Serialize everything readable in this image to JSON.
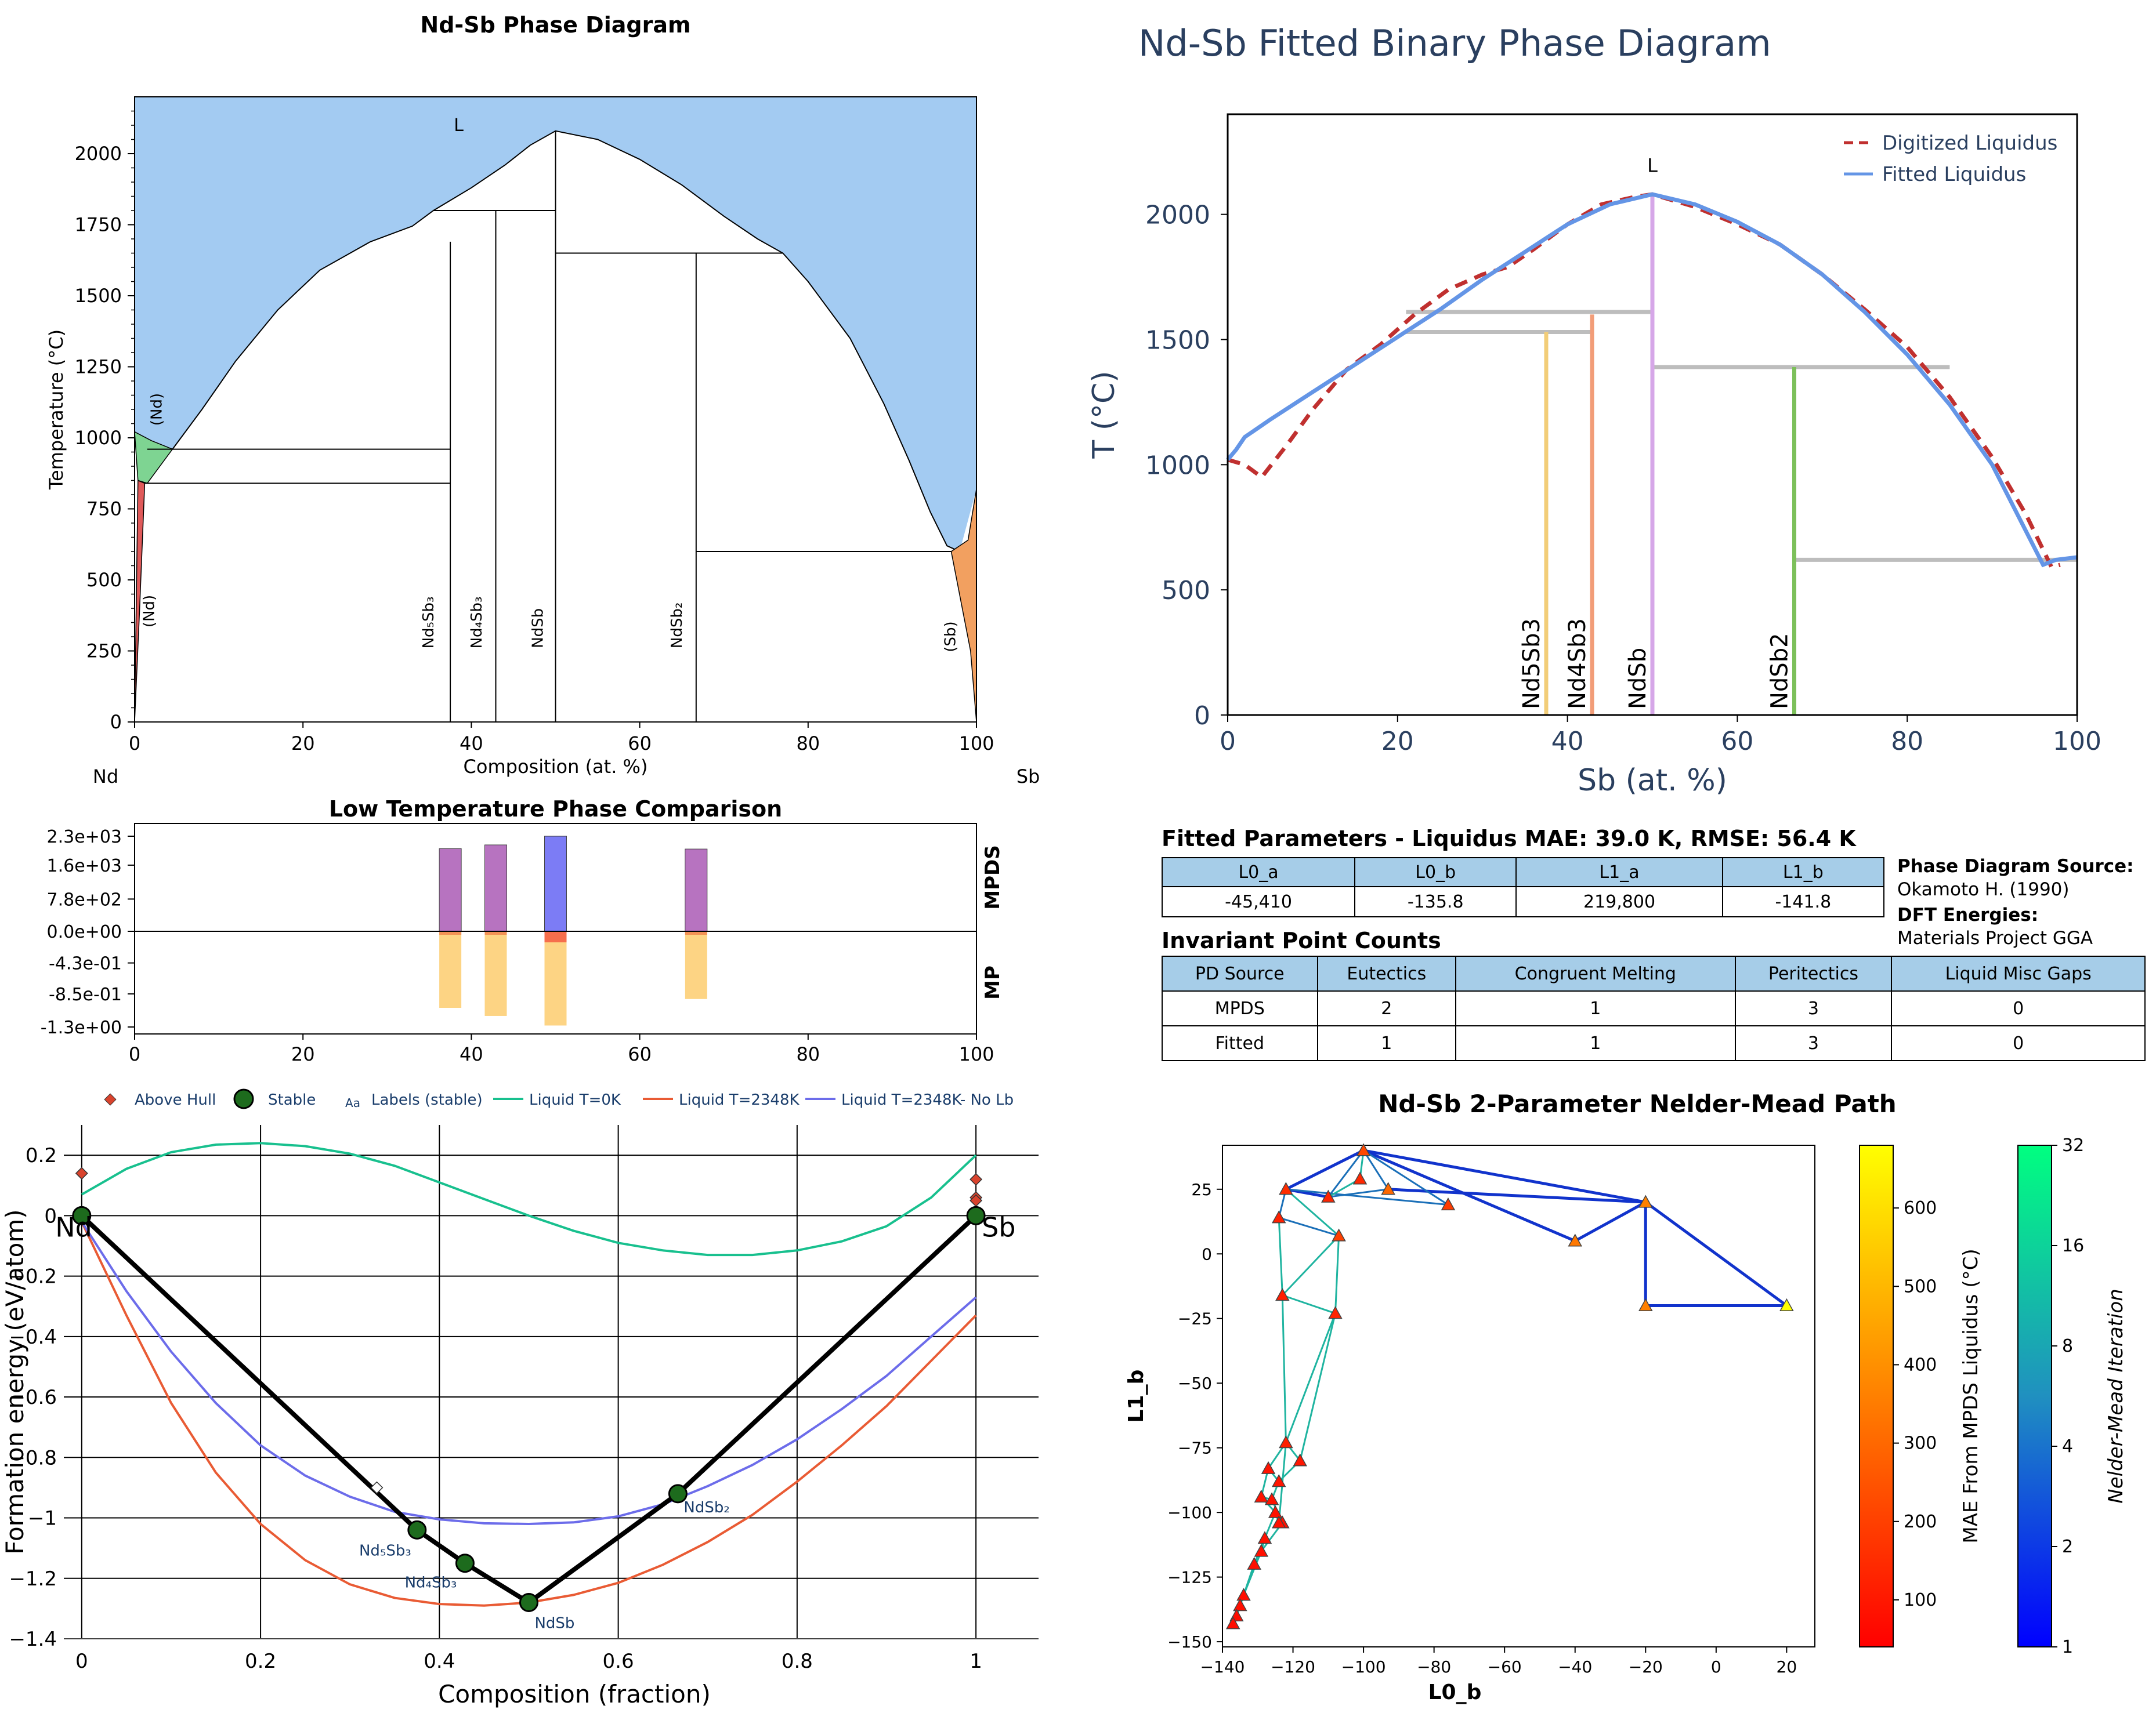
{
  "chart_data": [
    {
      "type": "phase_diagram",
      "title": "Nd-Sb Phase Diagram",
      "xlabel": "Composition (at. %)",
      "ylabel": "Temperature (°C)",
      "xlim": [
        0,
        100
      ],
      "ylim": [
        0,
        2200
      ],
      "xticks": [
        0,
        20,
        40,
        60,
        80,
        100
      ],
      "yticks": [
        0,
        250,
        500,
        750,
        1000,
        1250,
        1500,
        1750,
        2000
      ],
      "left_element": "Nd",
      "right_element": "Sb",
      "liquidus": [
        [
          0,
          1021
        ],
        [
          1,
          1000
        ],
        [
          2,
          980
        ],
        [
          4.5,
          960
        ],
        [
          8,
          1100
        ],
        [
          12,
          1270
        ],
        [
          17,
          1450
        ],
        [
          22,
          1590
        ],
        [
          28,
          1690
        ],
        [
          33,
          1745
        ],
        [
          35.5,
          1800
        ],
        [
          40,
          1880
        ],
        [
          44,
          1960
        ],
        [
          47,
          2030
        ],
        [
          50,
          2080
        ],
        [
          55,
          2050
        ],
        [
          60,
          1980
        ],
        [
          65,
          1890
        ],
        [
          70,
          1780
        ],
        [
          74,
          1700
        ],
        [
          77,
          1650
        ],
        [
          80,
          1550
        ],
        [
          85,
          1350
        ],
        [
          89,
          1120
        ],
        [
          92,
          920
        ],
        [
          94.5,
          740
        ],
        [
          96.5,
          620
        ],
        [
          98,
          600
        ]
      ],
      "phase_labels": [
        {
          "text": "L",
          "x": 38.5,
          "y": 2080
        },
        {
          "text": "(Nd)",
          "x": 3.2,
          "y": 1100
        },
        {
          "text": "(Nd)",
          "x": 2.3,
          "y": 390
        },
        {
          "text": "Nd₅Sb₃",
          "x": 35.5,
          "y": 350
        },
        {
          "text": "Nd₄Sb₃",
          "x": 41.2,
          "y": 350
        },
        {
          "text": "NdSb",
          "x": 48.5,
          "y": 330
        },
        {
          "text": "NdSb₂",
          "x": 65,
          "y": 340
        },
        {
          "text": "(Sb)",
          "x": 97.5,
          "y": 300
        }
      ],
      "compounds": [
        {
          "x": 37.5,
          "top": 1690
        },
        {
          "x": 42.9,
          "top": 1800
        },
        {
          "x": 50,
          "top": 2080
        },
        {
          "x": 66.7,
          "top": 1650
        }
      ],
      "horizontal_lines": [
        {
          "y": 1800,
          "x1": 35.5,
          "x2": 50
        },
        {
          "y": 1650,
          "x1": 50,
          "x2": 77
        },
        {
          "y": 960,
          "x1": 1.5,
          "x2": 37.5
        },
        {
          "y": 840,
          "x1": 1.2,
          "x2": 37.5
        },
        {
          "y": 600,
          "x1": 66.7,
          "x2": 97
        }
      ],
      "colors": {
        "liquid": "#a3cbf2",
        "nd_high": "#7ed492",
        "nd_low": "#e05a5a",
        "sb": "#f2a060"
      }
    },
    {
      "type": "bar",
      "title": "Low Temperature Phase Comparison",
      "xlim": [
        0,
        100
      ],
      "xticks": [
        0,
        20,
        40,
        60,
        80,
        100
      ],
      "ytick_labels": [
        "2.3e+03",
        "1.6e+03",
        "7.8e+02",
        "0.0e+00",
        "-4.3e-01",
        "-8.5e-01",
        "-1.3e+00"
      ],
      "right_labels": [
        "MPDS",
        "MP"
      ],
      "bars_top": [
        {
          "x": 37.5,
          "value": 2000,
          "color": "#b773c0"
        },
        {
          "x": 42.9,
          "value": 2090,
          "color": "#b773c0"
        },
        {
          "x": 50,
          "value": 2300,
          "color": "#7c7cf5"
        },
        {
          "x": 66.7,
          "value": 1990,
          "color": "#b773c0"
        }
      ],
      "bars_bottom": [
        {
          "x": 37.5,
          "value": -1.04,
          "cap": -0.04,
          "color": "#fdd484",
          "cap_color": "#f39256"
        },
        {
          "x": 42.9,
          "value": -1.15,
          "cap": 0,
          "color": "#fdd484",
          "cap_color": "#f39256"
        },
        {
          "x": 50,
          "value": -1.28,
          "cap": -0.15,
          "color": "#fdd484",
          "cap_color": "#f66e4c"
        },
        {
          "x": 66.7,
          "value": -0.92,
          "cap": -0.04,
          "color": "#fdd484",
          "cap_color": "#f39256"
        }
      ],
      "ylim_top": [
        0,
        2300
      ],
      "ylim_bottom": [
        -1.3,
        0
      ]
    },
    {
      "type": "line",
      "xlabel": "Composition (fraction)",
      "ylabel": "Formation energy (eV/atom)",
      "xlim": [
        -0.02,
        1.07
      ],
      "ylim": [
        -1.4,
        0.3
      ],
      "xticks": [
        0,
        0.2,
        0.4,
        0.6,
        0.8,
        1
      ],
      "xtick_labels": [
        "0",
        "0.2",
        "0.4",
        "0.6",
        "0.8",
        "1"
      ],
      "yticks": [
        -1.4,
        -1.2,
        -1,
        -0.8,
        -0.6,
        -0.4,
        -0.2,
        0,
        0.2
      ],
      "ytick_labels": [
        "−1.4",
        "−1.2",
        "−1",
        "−0.8",
        "−0.6",
        "−0.4",
        "−0.2",
        "0",
        "0.2"
      ],
      "legend": [
        "Above Hull",
        "Stable",
        "Labels (stable)",
        "Liquid T=0K",
        "Liquid T=2348K",
        "Liquid T=2348K- No Lb"
      ],
      "series": [
        {
          "name": "Liquid T=0K",
          "color": "#18c08e",
          "x": [
            0,
            0.05,
            0.1,
            0.15,
            0.2,
            0.25,
            0.3,
            0.35,
            0.4,
            0.45,
            0.5,
            0.55,
            0.6,
            0.65,
            0.7,
            0.75,
            0.8,
            0.85,
            0.9,
            0.95,
            1
          ],
          "y": [
            0.07,
            0.155,
            0.21,
            0.235,
            0.24,
            0.23,
            0.205,
            0.165,
            0.11,
            0.055,
            0,
            -0.05,
            -0.09,
            -0.115,
            -0.13,
            -0.13,
            -0.115,
            -0.085,
            -0.035,
            0.06,
            0.2
          ]
        },
        {
          "name": "Liquid T=2348K",
          "color": "#e95b34",
          "x": [
            0,
            0.05,
            0.1,
            0.15,
            0.2,
            0.25,
            0.3,
            0.35,
            0.4,
            0.45,
            0.5,
            0.55,
            0.6,
            0.65,
            0.7,
            0.75,
            0.8,
            0.85,
            0.9,
            0.95,
            1
          ],
          "y": [
            -0.02,
            -0.33,
            -0.62,
            -0.85,
            -1.02,
            -1.14,
            -1.22,
            -1.265,
            -1.285,
            -1.29,
            -1.28,
            -1.255,
            -1.215,
            -1.155,
            -1.08,
            -0.99,
            -0.88,
            -0.76,
            -0.63,
            -0.48,
            -0.33
          ]
        },
        {
          "name": "Liquid T=2348K- No Lb",
          "color": "#6c6cea",
          "x": [
            0,
            0.05,
            0.1,
            0.15,
            0.2,
            0.25,
            0.3,
            0.35,
            0.4,
            0.45,
            0.5,
            0.55,
            0.6,
            0.65,
            0.7,
            0.75,
            0.8,
            0.85,
            0.9,
            0.95,
            1
          ],
          "y": [
            -0.02,
            -0.25,
            -0.45,
            -0.62,
            -0.76,
            -0.86,
            -0.93,
            -0.98,
            -1.005,
            -1.018,
            -1.02,
            -1.015,
            -0.995,
            -0.955,
            -0.895,
            -0.825,
            -0.74,
            -0.64,
            -0.53,
            -0.4,
            -0.27
          ]
        },
        {
          "name": "Stable",
          "color": "#000000",
          "x": [
            0,
            0.375,
            0.4286,
            0.5,
            0.6667,
            1
          ],
          "y": [
            0,
            -1.04,
            -1.15,
            -1.28,
            -0.92,
            0
          ]
        }
      ],
      "stable_points": [
        {
          "x": 0,
          "y": 0,
          "label": "Nd"
        },
        {
          "x": 0.375,
          "y": -1.04,
          "label": "Nd₅Sb₃"
        },
        {
          "x": 0.4286,
          "y": -1.15,
          "label": "Nd₄Sb₃"
        },
        {
          "x": 0.5,
          "y": -1.28,
          "label": "NdSb"
        },
        {
          "x": 0.6667,
          "y": -0.92,
          "label": "NdSb₂"
        },
        {
          "x": 1,
          "y": 0,
          "label": "Sb"
        }
      ],
      "above_hull": [
        {
          "x": 0,
          "y": 0.14
        },
        {
          "x": 0,
          "y": 0.01
        },
        {
          "x": 0.33,
          "y": -0.9
        },
        {
          "x": 1,
          "y": 0.12
        },
        {
          "x": 1,
          "y": 0.06
        },
        {
          "x": 1,
          "y": 0.05
        }
      ]
    },
    {
      "type": "line",
      "title": "Nd-Sb Fitted Binary Phase Diagram",
      "xlabel": "Sb (at. %)",
      "ylabel": "T (°C)",
      "xlim": [
        0,
        100
      ],
      "ylim": [
        0,
        2400
      ],
      "xticks": [
        0,
        20,
        40,
        60,
        80,
        100
      ],
      "yticks": [
        0,
        500,
        1000,
        1500,
        2000
      ],
      "series": [
        {
          "name": "Digitized Liquidus",
          "color": "#c0302f",
          "dash": true,
          "x": [
            0,
            2,
            4,
            7,
            10,
            14,
            18,
            22,
            26,
            30,
            33,
            36,
            40,
            44,
            48,
            50,
            55,
            60,
            65,
            70,
            75,
            80,
            85,
            90,
            94,
            97,
            98
          ],
          "y": [
            1020,
            1000,
            950,
            1080,
            1220,
            1380,
            1480,
            1600,
            1700,
            1760,
            1790,
            1860,
            1960,
            2040,
            2070,
            2080,
            2030,
            1960,
            1880,
            1760,
            1620,
            1470,
            1270,
            1030,
            800,
            590,
            600
          ]
        },
        {
          "name": "Fitted Liquidus",
          "color": "#6495e6",
          "x": [
            0,
            1,
            2,
            5,
            10,
            15,
            20,
            25,
            30,
            35,
            40,
            45,
            50,
            55,
            60,
            65,
            70,
            75,
            80,
            85,
            90,
            93,
            96,
            97.5,
            100
          ],
          "y": [
            1020,
            1060,
            1110,
            1180,
            1290,
            1400,
            1510,
            1620,
            1740,
            1850,
            1960,
            2040,
            2080,
            2040,
            1970,
            1880,
            1760,
            1610,
            1440,
            1240,
            1000,
            800,
            600,
            620,
            630
          ]
        }
      ],
      "liquid_label": "L",
      "verticals": [
        {
          "label": "Nd5Sb3",
          "x": 37.5,
          "top": 1530,
          "color": "#f2cd78"
        },
        {
          "label": "Nd4Sb3",
          "x": 42.9,
          "top": 1600,
          "color": "#f29d78"
        },
        {
          "label": "NdSb",
          "x": 50,
          "top": 2080,
          "color": "#d6a7e8"
        },
        {
          "label": "NdSb2",
          "x": 66.7,
          "top": 1390,
          "color": "#7cc05a"
        }
      ],
      "horizontals": [
        {
          "y": 1610,
          "x1": 21,
          "x2": 50
        },
        {
          "y": 1530,
          "x1": 21,
          "x2": 42.9
        },
        {
          "y": 1390,
          "x1": 50,
          "x2": 85
        },
        {
          "y": 620,
          "x1": 66.7,
          "x2": 100
        }
      ]
    },
    {
      "type": "scatter",
      "title": "Nd-Sb 2-Parameter Nelder-Mead Path",
      "xlabel": "L0_b",
      "ylabel": "L1_b",
      "xlim": [
        -140,
        28
      ],
      "ylim": [
        -152,
        42
      ],
      "xticks": [
        -140,
        -120,
        -100,
        -80,
        -60,
        -40,
        -20,
        0,
        20
      ],
      "xtick_labels": [
        "−140",
        "−120",
        "−100",
        "−80",
        "−60",
        "−40",
        "−20",
        "0",
        "20"
      ],
      "yticks": [
        -150,
        -125,
        -100,
        -75,
        -50,
        -25,
        0,
        25
      ],
      "ytick_labels": [
        "−150",
        "−125",
        "−100",
        "−75",
        "−50",
        "−25",
        "0",
        "25"
      ],
      "points": [
        [
          20,
          -20
        ],
        [
          -20,
          20
        ],
        [
          -20,
          -20
        ],
        [
          -40,
          5
        ],
        [
          -100,
          40
        ],
        [
          -122,
          25
        ],
        [
          -110,
          22
        ],
        [
          -93,
          25
        ],
        [
          -76,
          19
        ],
        [
          -124,
          14
        ],
        [
          -107,
          7
        ],
        [
          -101,
          29
        ],
        [
          -123,
          -16
        ],
        [
          -108,
          -23
        ],
        [
          -122,
          -73
        ],
        [
          -118,
          -80
        ],
        [
          -127,
          -83
        ],
        [
          -124,
          -88
        ],
        [
          -129,
          -94
        ],
        [
          -126,
          -95
        ],
        [
          -125,
          -100
        ],
        [
          -123,
          -104
        ],
        [
          -128,
          -110
        ],
        [
          -129,
          -115
        ],
        [
          -131,
          -120
        ],
        [
          -134,
          -132
        ],
        [
          -135,
          -136
        ],
        [
          -136,
          -140
        ],
        [
          -137,
          -143
        ],
        [
          -124,
          -104
        ]
      ],
      "point_mae": [
        680,
        360,
        360,
        340,
        220,
        150,
        130,
        300,
        190,
        120,
        200,
        140,
        110,
        130,
        120,
        95,
        90,
        92,
        88,
        86,
        85,
        84,
        82,
        80,
        79,
        75,
        74,
        73,
        72,
        81
      ],
      "colorbar_mae": {
        "label": "MAE From MPDS Liquidus (°C)",
        "ticks": [
          100,
          200,
          300,
          400,
          500,
          600
        ],
        "range": [
          40,
          680
        ]
      },
      "colorbar_iter": {
        "label": "Nelder-Mead Iteration",
        "ticks": [
          1,
          2,
          4,
          8,
          16,
          32
        ]
      }
    }
  ],
  "fitted_table": {
    "title": "Fitted Parameters - Liquidus MAE: 39.0 K, RMSE: 56.4 K",
    "headers": [
      "L0_a",
      "L0_b",
      "L1_a",
      "L1_b"
    ],
    "row": [
      "-45,410",
      "-135.8",
      "219,800",
      "-141.8"
    ]
  },
  "source_info": {
    "pd_heading": "Phase Diagram Source:",
    "pd_value": "Okamoto H. (1990)",
    "dft_heading": "DFT Energies:",
    "dft_value": "Materials Project GGA"
  },
  "invariant_table": {
    "title": "Invariant Point Counts",
    "headers": [
      "PD Source",
      "Eutectics",
      "Congruent Melting",
      "Peritectics",
      "Liquid Misc Gaps"
    ],
    "rows": [
      [
        "MPDS",
        "2",
        "1",
        "3",
        "0"
      ],
      [
        "Fitted",
        "1",
        "1",
        "3",
        "0"
      ]
    ]
  }
}
